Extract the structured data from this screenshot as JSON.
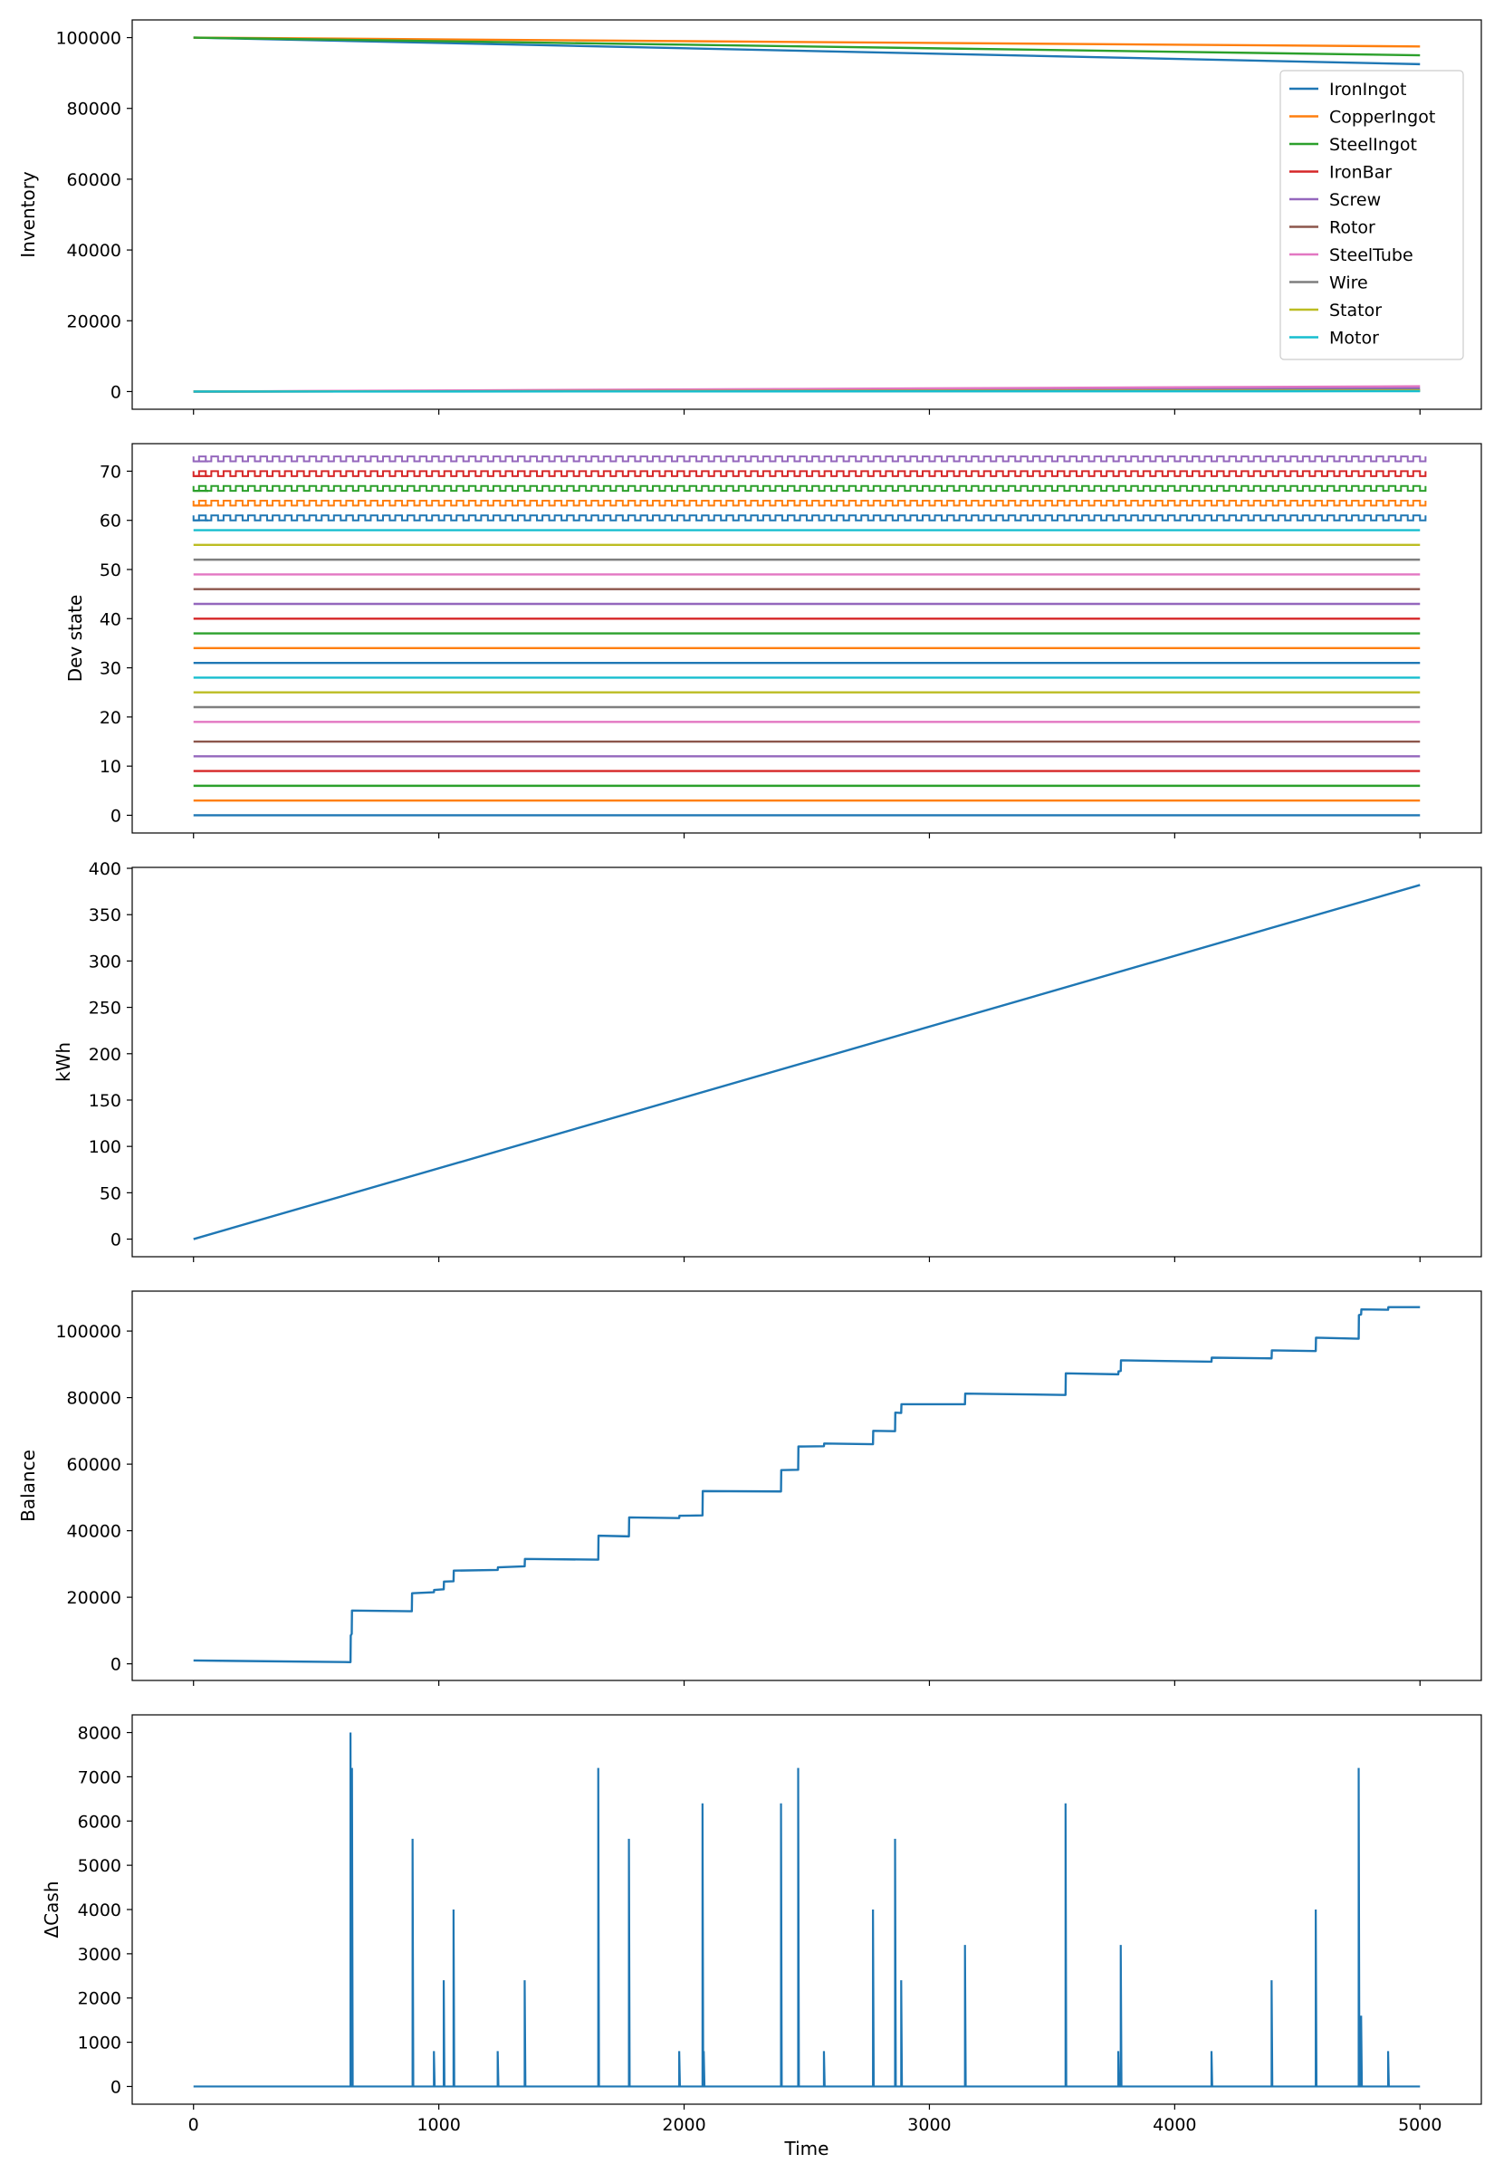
{
  "figure": {
    "xlabel": "Time"
  },
  "colors": {
    "tab_blue": "#1f77b4",
    "tab_orange": "#ff7f0e",
    "tab_green": "#2ca02c",
    "tab_red": "#d62728",
    "tab_purple": "#9467bd",
    "tab_brown": "#8c564b",
    "tab_pink": "#e377c2",
    "tab_gray": "#7f7f7f",
    "tab_olive": "#bcbd22",
    "tab_cyan": "#17becf"
  },
  "chart_data": [
    {
      "type": "line",
      "ylabel": "Inventory",
      "xlim": [
        -250,
        5250
      ],
      "ylim": [
        -5000,
        105000
      ],
      "xticks": [
        0,
        1000,
        2000,
        3000,
        4000,
        5000
      ],
      "yticks": [
        0,
        20000,
        40000,
        60000,
        80000,
        100000
      ],
      "legend": "right",
      "series": [
        {
          "name": "IronIngot",
          "color": "#1f77b4",
          "x": [
            0,
            5000
          ],
          "y": [
            100000,
            92500
          ]
        },
        {
          "name": "CopperIngot",
          "color": "#ff7f0e",
          "x": [
            0,
            5000
          ],
          "y": [
            100000,
            97500
          ]
        },
        {
          "name": "SteelIngot",
          "color": "#2ca02c",
          "x": [
            0,
            5000
          ],
          "y": [
            100000,
            95000
          ]
        },
        {
          "name": "IronBar",
          "color": "#d62728",
          "x": [
            0,
            5000
          ],
          "y": [
            0,
            300
          ]
        },
        {
          "name": "Screw",
          "color": "#9467bd",
          "x": [
            0,
            5000
          ],
          "y": [
            0,
            1000
          ]
        },
        {
          "name": "Rotor",
          "color": "#8c564b",
          "x": [
            0,
            5000
          ],
          "y": [
            0,
            200
          ]
        },
        {
          "name": "SteelTube",
          "color": "#e377c2",
          "x": [
            0,
            5000
          ],
          "y": [
            0,
            1500
          ]
        },
        {
          "name": "Wire",
          "color": "#7f7f7f",
          "x": [
            0,
            5000
          ],
          "y": [
            0,
            500
          ]
        },
        {
          "name": "Stator",
          "color": "#bcbd22",
          "x": [
            0,
            5000
          ],
          "y": [
            0,
            300
          ]
        },
        {
          "name": "Motor",
          "color": "#17becf",
          "x": [
            0,
            5000
          ],
          "y": [
            0,
            100
          ]
        }
      ]
    },
    {
      "type": "line",
      "ylabel": "Dev state",
      "xlim": [
        -250,
        5250
      ],
      "ylim": [
        -3.6,
        75.6
      ],
      "xticks": [
        0,
        1000,
        2000,
        3000,
        4000,
        5000
      ],
      "yticks": [
        0,
        10,
        20,
        30,
        40,
        50,
        60,
        70
      ],
      "series": [
        {
          "color": "#1f77b4",
          "x": [
            0,
            5000
          ],
          "y": [
            0,
            0
          ]
        },
        {
          "color": "#ff7f0e",
          "x": [
            0,
            5000
          ],
          "y": [
            3,
            3
          ]
        },
        {
          "color": "#2ca02c",
          "x": [
            0,
            5000
          ],
          "y": [
            6,
            6
          ]
        },
        {
          "color": "#d62728",
          "x": [
            0,
            5000
          ],
          "y": [
            9,
            9
          ]
        },
        {
          "color": "#9467bd",
          "x": [
            0,
            5000
          ],
          "y": [
            12,
            12
          ]
        },
        {
          "color": "#8c564b",
          "x": [
            0,
            5000
          ],
          "y": [
            15,
            15
          ]
        },
        {
          "color": "#e377c2",
          "x": [
            0,
            5000
          ],
          "y": [
            19,
            19
          ]
        },
        {
          "color": "#7f7f7f",
          "x": [
            0,
            5000
          ],
          "y": [
            22,
            22
          ]
        },
        {
          "color": "#bcbd22",
          "x": [
            0,
            5000
          ],
          "y": [
            25,
            25
          ]
        },
        {
          "color": "#17becf",
          "x": [
            0,
            5000
          ],
          "y": [
            28,
            28
          ]
        },
        {
          "color": "#1f77b4",
          "x": [
            0,
            5000
          ],
          "y": [
            31,
            31
          ]
        },
        {
          "color": "#ff7f0e",
          "x": [
            0,
            5000
          ],
          "y": [
            34,
            34
          ]
        },
        {
          "color": "#2ca02c",
          "x": [
            0,
            5000
          ],
          "y": [
            37,
            37
          ]
        },
        {
          "color": "#d62728",
          "x": [
            0,
            5000
          ],
          "y": [
            40,
            40
          ]
        },
        {
          "color": "#9467bd",
          "x": [
            0,
            5000
          ],
          "y": [
            43,
            43
          ]
        },
        {
          "color": "#8c564b",
          "x": [
            0,
            5000
          ],
          "y": [
            46,
            46
          ]
        },
        {
          "color": "#e377c2",
          "x": [
            0,
            5000
          ],
          "y": [
            49,
            49
          ]
        },
        {
          "color": "#7f7f7f",
          "x": [
            0,
            5000
          ],
          "y": [
            52,
            52
          ]
        },
        {
          "color": "#bcbd22",
          "x": [
            0,
            5000
          ],
          "y": [
            55,
            55
          ]
        },
        {
          "color": "#17becf",
          "x": [
            0,
            5000
          ],
          "y": [
            58,
            58
          ]
        },
        {
          "color": "#1f77b4",
          "x": [
            0,
            5000
          ],
          "y": [
            60,
            61
          ],
          "oscillating": true
        },
        {
          "color": "#ff7f0e",
          "x": [
            0,
            5000
          ],
          "y": [
            63,
            64
          ],
          "oscillating": true
        },
        {
          "color": "#2ca02c",
          "x": [
            0,
            5000
          ],
          "y": [
            66,
            67
          ],
          "oscillating": true
        },
        {
          "color": "#d62728",
          "x": [
            0,
            5000
          ],
          "y": [
            69,
            70
          ],
          "oscillating": true
        },
        {
          "color": "#9467bd",
          "x": [
            0,
            5000
          ],
          "y": [
            72,
            73
          ],
          "oscillating": true
        }
      ]
    },
    {
      "type": "line",
      "ylabel": "kWh",
      "xlim": [
        -250,
        5250
      ],
      "ylim": [
        -19,
        401
      ],
      "xticks": [
        0,
        1000,
        2000,
        3000,
        4000,
        5000
      ],
      "yticks": [
        0,
        50,
        100,
        150,
        200,
        250,
        300,
        350,
        400
      ],
      "series": [
        {
          "color": "#1f77b4",
          "x": [
            0,
            5000
          ],
          "y": [
            0,
            382
          ]
        }
      ]
    },
    {
      "type": "line",
      "ylabel": "Balance",
      "xlim": [
        -250,
        5250
      ],
      "ylim": [
        -5000,
        112000
      ],
      "xticks": [
        0,
        1000,
        2000,
        3000,
        4000,
        5000
      ],
      "yticks": [
        0,
        20000,
        40000,
        60000,
        80000,
        100000
      ],
      "series": [
        {
          "color": "#1f77b4",
          "x": [
            0,
            640,
            641,
            645,
            646,
            890,
            891,
            980,
            981,
            1020,
            1021,
            1060,
            1061,
            1240,
            1241,
            1350,
            1351,
            1650,
            1651,
            1775,
            1776,
            1980,
            1981,
            2075,
            2076,
            2395,
            2396,
            2465,
            2466,
            2570,
            2571,
            2770,
            2771,
            2860,
            2861,
            2885,
            2886,
            3145,
            3146,
            3555,
            3556,
            3770,
            3771,
            3780,
            3781,
            4150,
            4151,
            4395,
            4396,
            4575,
            4576,
            4750,
            4751,
            4760,
            4761,
            4870,
            4871,
            5000
          ],
          "y": [
            1000,
            500,
            8500,
            9000,
            16000,
            15800,
            21200,
            21500,
            22200,
            22400,
            24700,
            24800,
            28000,
            28200,
            29000,
            29300,
            31500,
            31300,
            38500,
            38300,
            44000,
            43800,
            44500,
            44600,
            51900,
            51800,
            58200,
            58300,
            65300,
            65400,
            66200,
            66000,
            70000,
            69900,
            75500,
            75400,
            78000,
            78000,
            81200,
            80800,
            87300,
            87000,
            87900,
            88000,
            91200,
            90800,
            92000,
            91800,
            94200,
            94000,
            98000,
            97700,
            104800,
            105000,
            106500,
            106400,
            107200,
            107200
          ]
        }
      ]
    },
    {
      "type": "line",
      "ylabel": "ΔCash",
      "xlabel": "Time",
      "xlim": [
        -250,
        5250
      ],
      "ylim": [
        -400,
        8400
      ],
      "xticks": [
        0,
        1000,
        2000,
        3000,
        4000,
        5000
      ],
      "yticks": [
        0,
        1000,
        2000,
        3000,
        4000,
        5000,
        6000,
        7000,
        8000
      ],
      "series": [
        {
          "color": "#1f77b4",
          "baseline": 0,
          "x_range": [
            0,
            5000
          ],
          "spikes": [
            [
              640,
              8000
            ],
            [
              646,
              7200
            ],
            [
              893,
              5600
            ],
            [
              980,
              800
            ],
            [
              1020,
              2400
            ],
            [
              1060,
              4000
            ],
            [
              1240,
              800
            ],
            [
              1350,
              2400
            ],
            [
              1650,
              7200
            ],
            [
              1775,
              5600
            ],
            [
              1980,
              800
            ],
            [
              2075,
              6400
            ],
            [
              2080,
              800
            ],
            [
              2395,
              6400
            ],
            [
              2465,
              7200
            ],
            [
              2570,
              800
            ],
            [
              2770,
              4000
            ],
            [
              2860,
              5600
            ],
            [
              2885,
              2400
            ],
            [
              3145,
              3200
            ],
            [
              3555,
              6400
            ],
            [
              3770,
              800
            ],
            [
              3780,
              3200
            ],
            [
              4150,
              800
            ],
            [
              4395,
              2400
            ],
            [
              4575,
              4000
            ],
            [
              4750,
              7200
            ],
            [
              4760,
              1600
            ],
            [
              4870,
              800
            ]
          ]
        }
      ]
    }
  ]
}
